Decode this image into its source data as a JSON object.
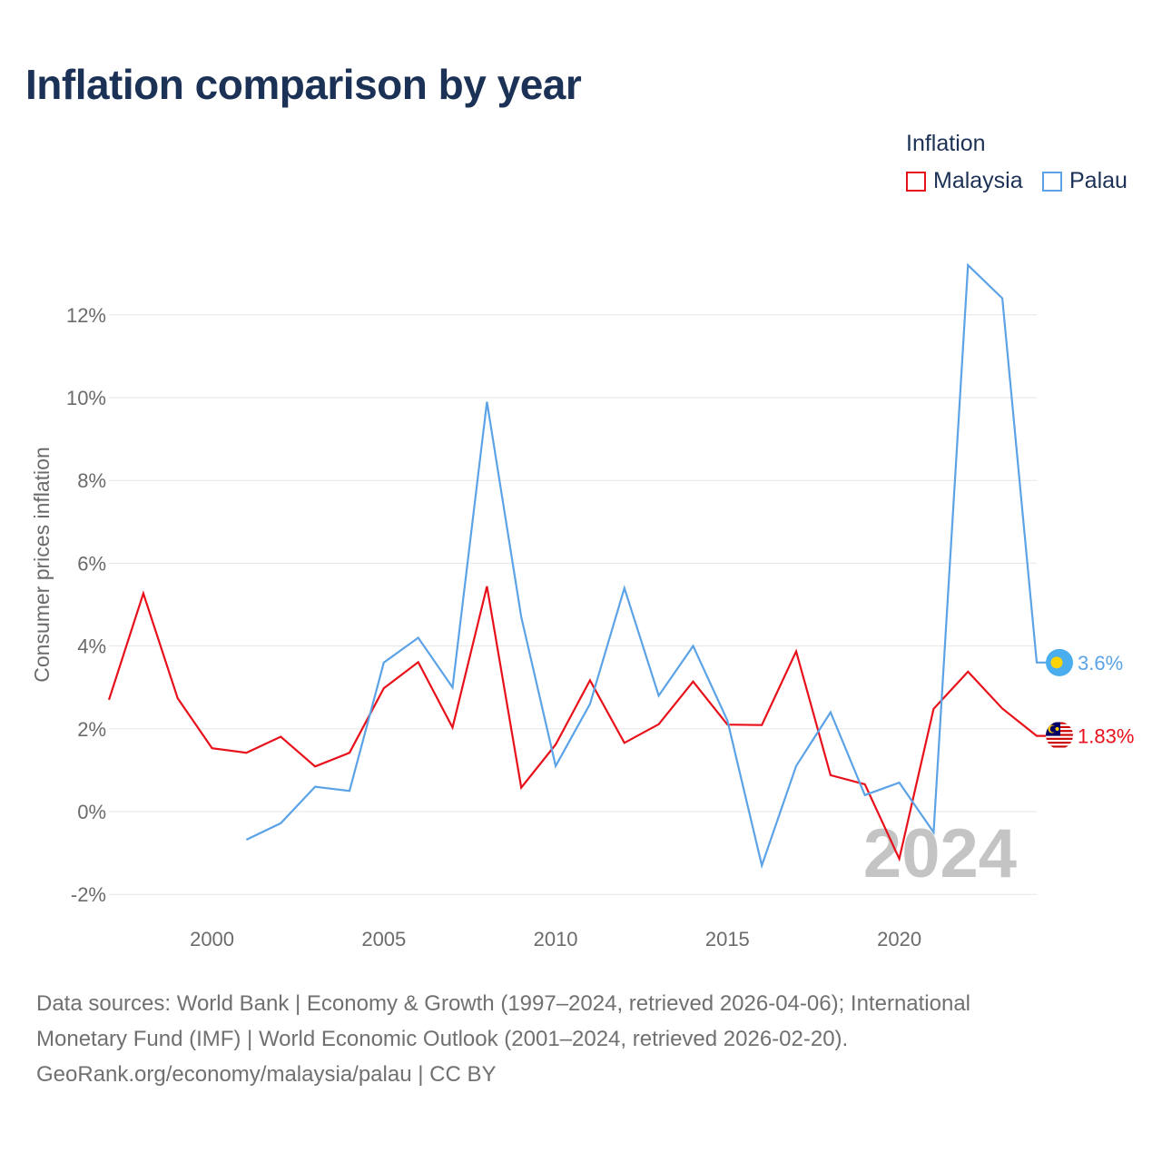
{
  "title": "Inflation comparison by year",
  "legend": {
    "title": "Inflation",
    "items": [
      {
        "label": "Malaysia",
        "color": "#e8101a"
      },
      {
        "label": "Palau",
        "color": "#5ba3e6"
      }
    ]
  },
  "source": {
    "line1": "Data sources: World Bank | Economy & Growth (1997–2024, retrieved 2026-04-06); International",
    "line2": "Monetary Fund (IMF) | World Economic Outlook (2001–2024, retrieved 2026-02-20).",
    "line3": "GeoRank.org/economy/malaysia/palau | CC BY"
  },
  "chart_data": {
    "type": "line",
    "title": "Inflation comparison by year",
    "xlabel": "",
    "ylabel": "Consumer prices inflation",
    "xlim": [
      1997,
      2024
    ],
    "ylim": [
      -2.2,
      13.5
    ],
    "x_ticks": [
      2000,
      2005,
      2010,
      2015,
      2020
    ],
    "y_ticks": [
      -2,
      0,
      2,
      4,
      6,
      8,
      10,
      12
    ],
    "y_tick_labels": [
      "-2%",
      "0%",
      "2%",
      "4%",
      "6%",
      "8%",
      "10%",
      "12%"
    ],
    "grid": true,
    "legend_position": "top-right",
    "watermark_year": "2024",
    "series": [
      {
        "name": "Malaysia",
        "color": "#e8101a",
        "end_label": "1.83%",
        "flag": "malaysia-flag",
        "x": [
          1997,
          1998,
          1999,
          2000,
          2001,
          2002,
          2003,
          2004,
          2005,
          2006,
          2007,
          2008,
          2009,
          2010,
          2011,
          2012,
          2013,
          2014,
          2015,
          2016,
          2017,
          2018,
          2019,
          2020,
          2021,
          2022,
          2023,
          2024
        ],
        "values": [
          2.7,
          5.27,
          2.74,
          1.53,
          1.42,
          1.81,
          1.09,
          1.42,
          2.98,
          3.61,
          2.03,
          5.44,
          0.58,
          1.62,
          3.17,
          1.66,
          2.11,
          3.14,
          2.1,
          2.09,
          3.87,
          0.88,
          0.66,
          -1.14,
          2.48,
          3.38,
          2.49,
          1.83
        ]
      },
      {
        "name": "Palau",
        "color": "#5ba3e6",
        "end_label": "3.6%",
        "flag": "palau-flag",
        "x": [
          2001,
          2002,
          2003,
          2004,
          2005,
          2006,
          2007,
          2008,
          2009,
          2010,
          2011,
          2012,
          2013,
          2014,
          2015,
          2016,
          2017,
          2018,
          2019,
          2020,
          2021,
          2022,
          2023,
          2024
        ],
        "values": [
          -0.68,
          -0.28,
          0.6,
          0.5,
          3.6,
          4.2,
          3.0,
          9.9,
          4.7,
          1.1,
          2.6,
          5.4,
          2.8,
          4.0,
          2.2,
          -1.3,
          1.1,
          2.4,
          0.4,
          0.7,
          -0.5,
          13.2,
          12.4,
          3.6
        ]
      }
    ]
  }
}
